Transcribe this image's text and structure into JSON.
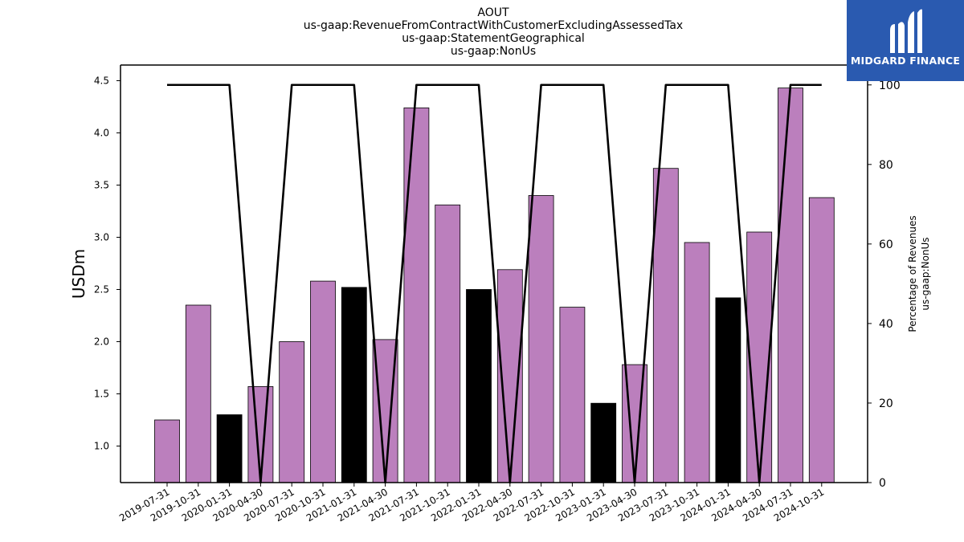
{
  "chart_data": {
    "type": "bar",
    "title": [
      "AOUT",
      "us-gaap:RevenueFromContractWithCustomerExcludingAssessedTax",
      "us-gaap:StatementGeographical",
      "us-gaap:NonUs"
    ],
    "ylabel": "USDm",
    "y2label": [
      "Percentage of Revenues",
      "us-gaap:NonUs"
    ],
    "categories": [
      "2019-07-31",
      "2019-10-31",
      "2020-01-31",
      "2020-04-30",
      "2020-07-31",
      "2020-10-31",
      "2021-01-31",
      "2021-04-30",
      "2021-07-31",
      "2021-10-31",
      "2022-01-31",
      "2022-04-30",
      "2022-07-31",
      "2022-10-31",
      "2023-01-31",
      "2023-04-30",
      "2023-07-31",
      "2023-10-31",
      "2024-01-31",
      "2024-04-30",
      "2024-07-31",
      "2024-10-31"
    ],
    "values": [
      1.25,
      2.35,
      1.3,
      1.57,
      2.0,
      2.58,
      2.52,
      2.02,
      4.24,
      3.31,
      2.5,
      2.69,
      3.4,
      2.33,
      1.41,
      1.78,
      3.66,
      2.95,
      2.42,
      3.05,
      4.43,
      3.38
    ],
    "bar_highlight": [
      false,
      false,
      true,
      false,
      false,
      false,
      true,
      false,
      false,
      false,
      true,
      false,
      false,
      false,
      true,
      false,
      false,
      false,
      true,
      false,
      false,
      false
    ],
    "line_series": {
      "axis": "right",
      "values": [
        100,
        100,
        100,
        0,
        100,
        100,
        100,
        0,
        100,
        100,
        100,
        0,
        100,
        100,
        100,
        0,
        100,
        100,
        100,
        0,
        100,
        100
      ]
    },
    "ylim": [
      0.65,
      4.65
    ],
    "yticks": [
      1.0,
      1.5,
      2.0,
      2.5,
      3.0,
      3.5,
      4.0,
      4.5
    ],
    "y2lim": [
      0,
      105
    ],
    "y2ticks": [
      0,
      20,
      40,
      60,
      80,
      100
    ],
    "colors": {
      "bar": "#bb7fbd",
      "bar_highlight": "#000000",
      "line": "#000000"
    },
    "grid": false,
    "legend": "none"
  },
  "logo": {
    "text": "MIDGARD FINANCE",
    "color": "#2a5ab0"
  }
}
